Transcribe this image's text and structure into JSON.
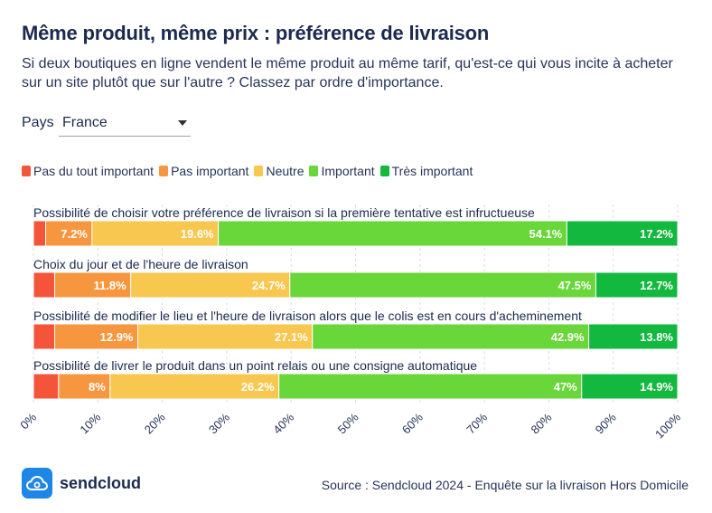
{
  "header": {
    "title": "Même produit, même prix : préférence de livraison",
    "subtitle": "Si deux boutiques en ligne vendent le même produit au même tarif, qu'est-ce qui vous incite à acheter sur un site plutôt que sur l'autre ? Classez par ordre d'importance."
  },
  "filter": {
    "label": "Pays",
    "value": "France"
  },
  "footer": {
    "brand": "sendcloud",
    "source": "Source : Sendcloud 2024 - Enquête sur la livraison Hors Domicile"
  },
  "colors": {
    "pas_du_tout": "#f4553a",
    "pas_important": "#f6973f",
    "neutre": "#f7c74f",
    "important": "#69d63a",
    "tres_important": "#13b83e"
  },
  "chart_data": {
    "type": "bar",
    "orientation": "horizontal",
    "stacked": "percent",
    "legend": "top-left",
    "grid": true,
    "xlim": [
      0,
      100
    ],
    "xticks": [
      "0%",
      "10%",
      "20%",
      "30%",
      "40%",
      "50%",
      "60%",
      "70%",
      "80%",
      "90%",
      "100%"
    ],
    "categories": [
      "Possibilité de choisir votre préférence de livraison si la première tentative est infructueuse",
      "Choix du jour et de l'heure de livraison",
      "Possibilité de modifier le lieu et l'heure de livraison alors que le colis est en cours d'acheminement",
      "Possibilité de livrer le produit dans un point relais ou une consigne automatique"
    ],
    "series": [
      {
        "name": "Pas du tout important",
        "color": "#f4553a",
        "values": [
          1.9,
          3.3,
          3.3,
          3.9
        ],
        "labels": [
          "",
          "",
          "",
          ""
        ]
      },
      {
        "name": "Pas important",
        "color": "#f6973f",
        "values": [
          7.2,
          11.8,
          12.9,
          8.0
        ],
        "labels": [
          "7.2%",
          "11.8%",
          "12.9%",
          "8%"
        ]
      },
      {
        "name": "Neutre",
        "color": "#f7c74f",
        "values": [
          19.6,
          24.7,
          27.1,
          26.2
        ],
        "labels": [
          "19.6%",
          "24.7%",
          "27.1%",
          "26.2%"
        ]
      },
      {
        "name": "Important",
        "color": "#69d63a",
        "values": [
          54.1,
          47.5,
          42.9,
          47.0
        ],
        "labels": [
          "54.1%",
          "47.5%",
          "42.9%",
          "47%"
        ]
      },
      {
        "name": "Très important",
        "color": "#13b83e",
        "values": [
          17.2,
          12.7,
          13.8,
          14.9
        ],
        "labels": [
          "17.2%",
          "12.7%",
          "13.8%",
          "14.9%"
        ]
      }
    ]
  }
}
